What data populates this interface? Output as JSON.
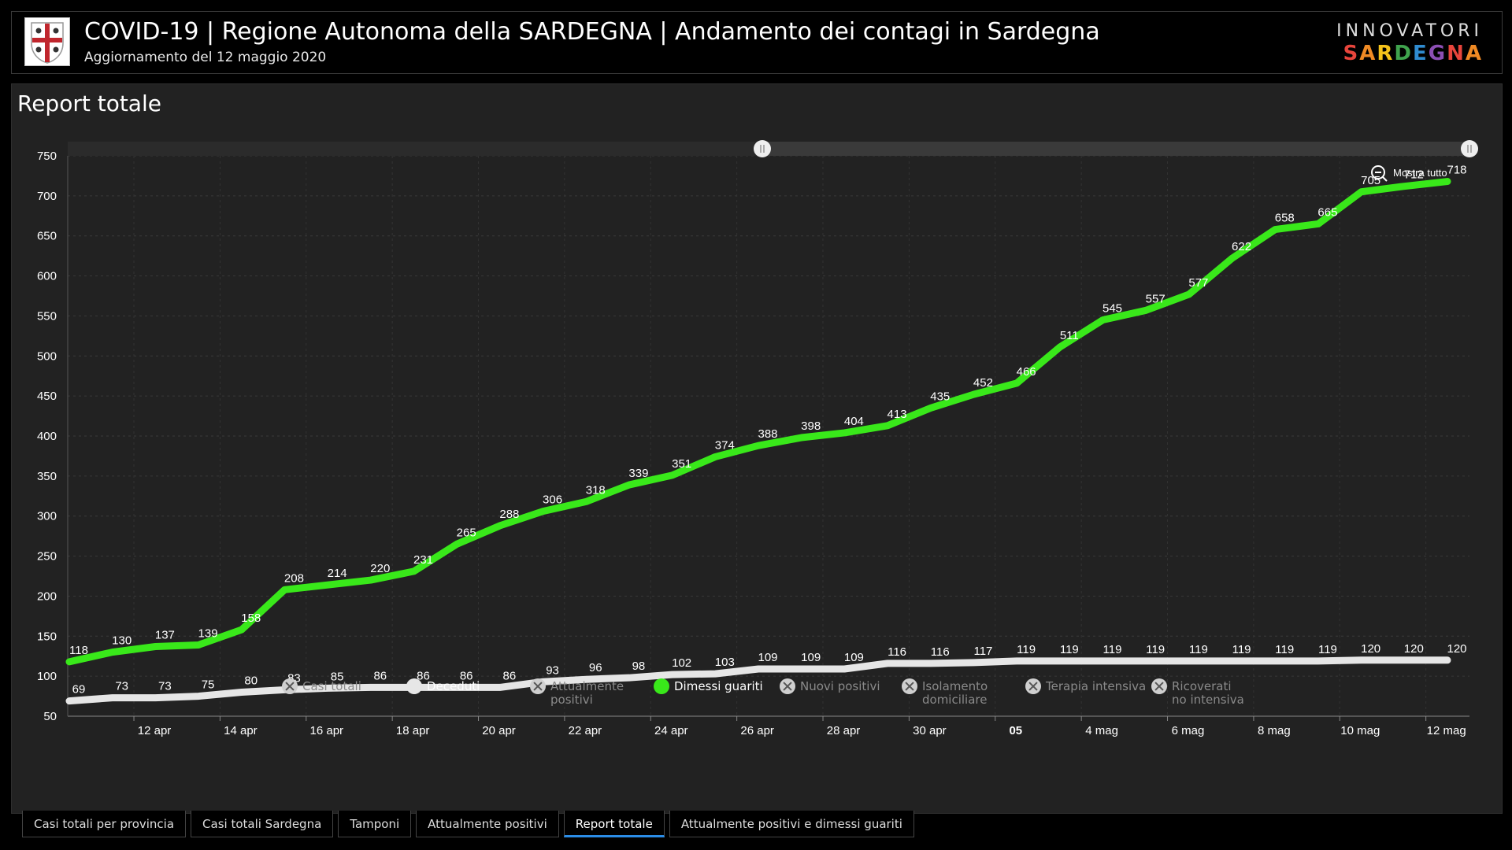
{
  "header": {
    "title": "COVID-19 | Regione Autonoma della SARDEGNA | Andamento dei contagi in Sardegna",
    "subtitle": "Aggiornamento del 12 maggio 2020",
    "brand_top": "INNOVATORI",
    "brand_bottom": "SARDEGNA"
  },
  "panel": {
    "title": "Report totale",
    "zoom_label": "Mostra tutto"
  },
  "legend": [
    {
      "label": "Casi totali",
      "active": false,
      "color": "#e6e6e6"
    },
    {
      "label": "Deceduti",
      "active": true,
      "color": "#e6e6e6"
    },
    {
      "label": "Attualmente positivi",
      "active": false,
      "color": "#e6e6e6"
    },
    {
      "label": "Dimessi guariti",
      "active": true,
      "color": "#39e81a"
    },
    {
      "label": "Nuovi positivi",
      "active": false,
      "color": "#e6e6e6"
    },
    {
      "label": "Isolamento domiciliare",
      "active": false,
      "color": "#e6e6e6"
    },
    {
      "label": "Terapia intensiva",
      "active": false,
      "color": "#e6e6e6"
    },
    {
      "label": "Ricoverati no intensiva",
      "active": false,
      "color": "#e6e6e6"
    }
  ],
  "tabs": [
    {
      "label": "Casi totali per provincia",
      "active": false
    },
    {
      "label": "Casi totali Sardegna",
      "active": false
    },
    {
      "label": "Tamponi",
      "active": false
    },
    {
      "label": "Attualmente positivi",
      "active": false
    },
    {
      "label": "Report totale",
      "active": true
    },
    {
      "label": "Attualmente positivi e dimessi guariti",
      "active": false
    }
  ],
  "chart_data": {
    "type": "line",
    "x": [
      "2020-04-10",
      "2020-04-11",
      "2020-04-12",
      "2020-04-13",
      "2020-04-14",
      "2020-04-15",
      "2020-04-16",
      "2020-04-17",
      "2020-04-18",
      "2020-04-19",
      "2020-04-20",
      "2020-04-21",
      "2020-04-22",
      "2020-04-23",
      "2020-04-24",
      "2020-04-25",
      "2020-04-26",
      "2020-04-27",
      "2020-04-28",
      "2020-04-29",
      "2020-04-30",
      "2020-05-01",
      "2020-05-02",
      "2020-05-03",
      "2020-05-04",
      "2020-05-05",
      "2020-05-06",
      "2020-05-07",
      "2020-05-08",
      "2020-05-09",
      "2020-05-10",
      "2020-05-11",
      "2020-05-12"
    ],
    "x_tick_labels": [
      "12 apr",
      "14 apr",
      "16 apr",
      "18 apr",
      "20 apr",
      "22 apr",
      "24 apr",
      "26 apr",
      "28 apr",
      "30 apr",
      "05",
      "4 mag",
      "6 mag",
      "8 mag",
      "10 mag",
      "12 mag"
    ],
    "series": [
      {
        "name": "Dimessi guariti",
        "color": "#39e81a",
        "values": [
          118,
          130,
          137,
          139,
          158,
          208,
          214,
          220,
          231,
          265,
          288,
          306,
          318,
          339,
          351,
          374,
          388,
          398,
          404,
          413,
          435,
          452,
          466,
          511,
          545,
          557,
          577,
          622,
          658,
          665,
          705,
          712,
          718
        ]
      },
      {
        "name": "Deceduti",
        "color": "#e6e6e6",
        "values": [
          69,
          73,
          73,
          75,
          80,
          83,
          85,
          86,
          86,
          86,
          86,
          93,
          96,
          98,
          102,
          103,
          109,
          109,
          109,
          116,
          116,
          117,
          119,
          119,
          119,
          119,
          119,
          119,
          119,
          119,
          120,
          120,
          120
        ]
      }
    ],
    "ylim": [
      50,
      750
    ],
    "yticks": [
      50,
      100,
      150,
      200,
      250,
      300,
      350,
      400,
      450,
      500,
      550,
      600,
      650,
      700,
      750
    ],
    "grid": true
  }
}
